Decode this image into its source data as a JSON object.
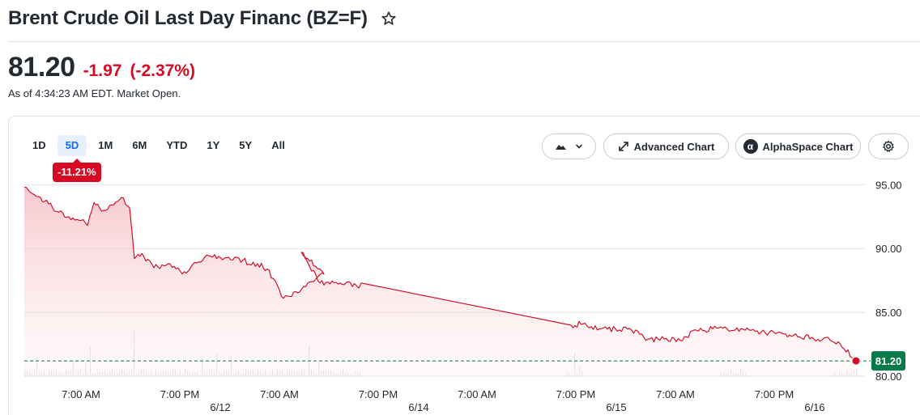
{
  "header": {
    "title": "Brent Crude Oil Last Day Financ (BZ=F)",
    "star_icon": "star-icon"
  },
  "quote": {
    "price": "81.20",
    "change": "-1.97",
    "change_pct": "(-2.37%)",
    "as_of": "As of 4:34:23 AM EDT. Market Open."
  },
  "toolbar": {
    "ranges": [
      "1D",
      "5D",
      "1M",
      "6M",
      "YTD",
      "1Y",
      "5Y",
      "All"
    ],
    "active_range": "5D",
    "period_change": "-11.21%",
    "chart_type_icon": "mountain-chart-icon",
    "advanced_chart_label": "Advanced Chart",
    "alphaspace_chart_label": "AlphaSpace Chart",
    "alphaspace_logo": "α",
    "settings_icon": "gear-icon"
  },
  "colors": {
    "down": "#d60a22",
    "line": "#d0021b",
    "last_price_bg": "#0a7a4b",
    "reference_line": "#0a7a4b"
  },
  "chart_data": {
    "type": "area",
    "y_ticks": [
      "95.00",
      "90.00",
      "85.00",
      "80.00"
    ],
    "ylim": [
      80,
      95.4
    ],
    "x_tick_labels": [
      {
        "time": "7:00 AM",
        "date": ""
      },
      {
        "time": "7:00 PM",
        "date": "6/12"
      },
      {
        "time": "7:00 AM",
        "date": ""
      },
      {
        "time": "7:00 PM",
        "date": "6/14"
      },
      {
        "time": "7:00 AM",
        "date": ""
      },
      {
        "time": "7:00 PM",
        "date": "6/15"
      },
      {
        "time": "7:00 AM",
        "date": ""
      },
      {
        "time": "7:00 PM",
        "date": "6/16"
      }
    ],
    "last_price": "81.20",
    "reference_value": 81.2,
    "series": [
      {
        "values": [
          94.8,
          94.3,
          94.0,
          93.5,
          92.9,
          92.5,
          92.2,
          91.8,
          93.6,
          93.0,
          94.0,
          93.2,
          89.2,
          89.6,
          88.5,
          88.8,
          88.0,
          88.9,
          89.4,
          89.3,
          89.1,
          88.7,
          88.8,
          88.4,
          86.1,
          86.6,
          87.4,
          88.0,
          89.7,
          87.3,
          87.3,
          87.1,
          86.9,
          87.3,
          84.0,
          84.1,
          83.7,
          83.7,
          83.6,
          82.9,
          82.9,
          82.8,
          83.6,
          83.7,
          83.6,
          83.2,
          82.7,
          81.2
        ]
      }
    ]
  }
}
